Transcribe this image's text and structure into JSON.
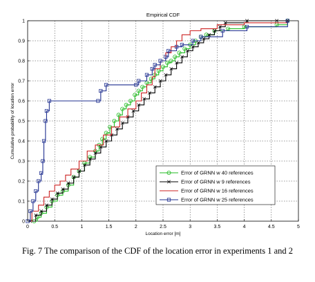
{
  "caption": "Fig. 7 The comparison of the CDF of the location error in experiments 1 and 2",
  "chart_data": {
    "type": "line",
    "title": "Empirical CDF",
    "xlabel": "Location error [m]",
    "ylabel": "Cumulative probability of location error",
    "xlim": [
      0,
      5
    ],
    "ylim": [
      0,
      1
    ],
    "xticks": [
      "0",
      "0.5",
      "1",
      "1.5",
      "2",
      "2.5",
      "3",
      "3.5",
      "4",
      "4.5",
      "5"
    ],
    "yticks": [
      "0",
      "0.1",
      "0.2",
      "0.3",
      "0.4",
      "0.5",
      "0.6",
      "0.7",
      "0.8",
      "0.9",
      "1"
    ],
    "grid": true,
    "legend_position": "bottom-right",
    "series": [
      {
        "name": "Error of GRNN w 40 references",
        "color": "#22bb22",
        "marker": "circle",
        "x": [
          0.12,
          0.18,
          0.25,
          0.35,
          0.45,
          0.55,
          0.65,
          0.75,
          0.85,
          0.95,
          1.05,
          1.15,
          1.25,
          1.32,
          1.38,
          1.45,
          1.52,
          1.6,
          1.68,
          1.75,
          1.82,
          1.9,
          1.98,
          2.05,
          2.12,
          2.2,
          2.28,
          2.35,
          2.42,
          2.5,
          2.58,
          2.65,
          2.72,
          2.8,
          2.9,
          3.0,
          3.1,
          3.2,
          3.3,
          3.45,
          3.7,
          4.0,
          4.6,
          4.8
        ],
        "y": [
          0.0,
          0.02,
          0.04,
          0.07,
          0.1,
          0.13,
          0.15,
          0.18,
          0.22,
          0.25,
          0.29,
          0.32,
          0.35,
          0.38,
          0.41,
          0.44,
          0.47,
          0.5,
          0.53,
          0.56,
          0.58,
          0.6,
          0.63,
          0.65,
          0.67,
          0.69,
          0.71,
          0.73,
          0.75,
          0.77,
          0.79,
          0.8,
          0.82,
          0.84,
          0.86,
          0.88,
          0.9,
          0.92,
          0.93,
          0.95,
          0.96,
          0.97,
          0.98,
          1.0
        ]
      },
      {
        "name": "Error of GRNN w 9 references",
        "color": "#000000",
        "marker": "x",
        "x": [
          0.05,
          0.15,
          0.25,
          0.35,
          0.45,
          0.55,
          0.65,
          0.75,
          0.85,
          0.95,
          1.05,
          1.15,
          1.25,
          1.35,
          1.45,
          1.55,
          1.65,
          1.75,
          1.85,
          1.95,
          2.05,
          2.15,
          2.25,
          2.35,
          2.45,
          2.55,
          2.65,
          2.75,
          2.85,
          2.95,
          3.05,
          3.15,
          3.25,
          3.35,
          3.45,
          3.55,
          3.65,
          4.05,
          4.6,
          4.8
        ],
        "y": [
          0.0,
          0.03,
          0.05,
          0.08,
          0.11,
          0.14,
          0.16,
          0.19,
          0.22,
          0.25,
          0.28,
          0.31,
          0.34,
          0.37,
          0.4,
          0.43,
          0.46,
          0.49,
          0.52,
          0.55,
          0.58,
          0.61,
          0.64,
          0.67,
          0.7,
          0.73,
          0.76,
          0.79,
          0.82,
          0.85,
          0.87,
          0.89,
          0.91,
          0.93,
          0.95,
          0.97,
          0.99,
          1.0,
          1.0,
          1.0
        ]
      },
      {
        "name": "Error of GRNN w 16 references",
        "color": "#cc2222",
        "marker": "none",
        "x": [
          0.0,
          0.08,
          0.2,
          0.3,
          0.4,
          0.5,
          0.6,
          0.7,
          0.8,
          0.95,
          1.1,
          1.25,
          1.4,
          1.55,
          1.7,
          1.85,
          2.0,
          2.1,
          2.2,
          2.3,
          2.35,
          2.45,
          2.55,
          2.65,
          2.75,
          2.85,
          3.0,
          3.2,
          3.5,
          4.0,
          4.8
        ],
        "y": [
          0.0,
          0.05,
          0.08,
          0.12,
          0.15,
          0.18,
          0.2,
          0.23,
          0.26,
          0.3,
          0.35,
          0.38,
          0.43,
          0.47,
          0.52,
          0.56,
          0.6,
          0.64,
          0.68,
          0.72,
          0.76,
          0.8,
          0.84,
          0.87,
          0.9,
          0.93,
          0.95,
          0.96,
          0.98,
          0.99,
          1.0
        ]
      },
      {
        "name": "Error of GRNN w 25 references",
        "color": "#1f2f8f",
        "marker": "square",
        "x": [
          0.0,
          0.05,
          0.1,
          0.15,
          0.2,
          0.25,
          0.28,
          0.3,
          0.33,
          0.35,
          0.4,
          1.3,
          1.35,
          1.45,
          2.0,
          2.05,
          2.2,
          2.3,
          2.35,
          2.45,
          2.55,
          2.6,
          2.75,
          2.85,
          3.05,
          3.2,
          3.6,
          4.05,
          4.8
        ],
        "y": [
          0.0,
          0.05,
          0.1,
          0.15,
          0.2,
          0.24,
          0.3,
          0.4,
          0.5,
          0.55,
          0.6,
          0.6,
          0.65,
          0.68,
          0.68,
          0.7,
          0.73,
          0.76,
          0.78,
          0.8,
          0.82,
          0.85,
          0.87,
          0.88,
          0.9,
          0.92,
          0.95,
          0.97,
          1.0
        ]
      }
    ]
  }
}
